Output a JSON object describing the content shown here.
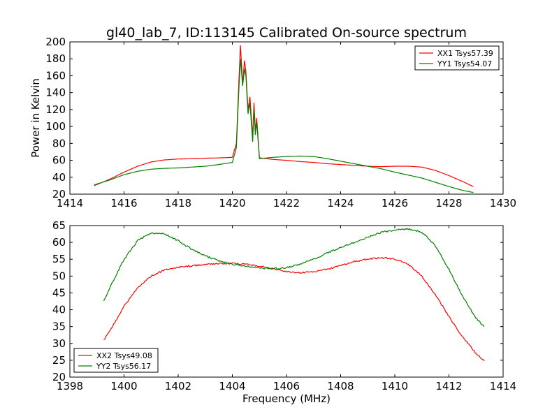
{
  "figure": {
    "title": "gl40_lab_7, ID:113145 Calibrated On-source spectrum"
  },
  "chart_data": [
    {
      "type": "line",
      "title": "gl40_lab_7, ID:113145 Calibrated On-source spectrum",
      "xlabel": "",
      "ylabel": "Power in Kelvin",
      "xlim": [
        1414,
        1430
      ],
      "ylim": [
        20,
        200
      ],
      "xticks": [
        1414,
        1416,
        1418,
        1420,
        1422,
        1424,
        1426,
        1428,
        1430
      ],
      "yticks": [
        20,
        40,
        60,
        80,
        100,
        120,
        140,
        160,
        180,
        200
      ],
      "grid": false,
      "legend_position": "top-right",
      "series": [
        {
          "name": "XX1 Tsys57.39",
          "color": "#ff0000",
          "x": [
            1414.9,
            1415.5,
            1416.0,
            1416.5,
            1417.0,
            1417.5,
            1418.0,
            1418.5,
            1419.0,
            1419.5,
            1420.0,
            1420.15,
            1420.25,
            1420.3,
            1420.38,
            1420.45,
            1420.5,
            1420.58,
            1420.65,
            1420.75,
            1420.8,
            1420.85,
            1420.9,
            1421.0,
            1421.5,
            1422.0,
            1422.5,
            1423.0,
            1423.5,
            1424.0,
            1424.5,
            1425.0,
            1425.5,
            1426.0,
            1426.5,
            1427.0,
            1427.5,
            1428.0,
            1428.5,
            1428.9
          ],
          "y": [
            30,
            38,
            46,
            53,
            58,
            60.5,
            61.5,
            62,
            62.5,
            62.8,
            63.5,
            80,
            160,
            196,
            150,
            178,
            165,
            120,
            135,
            88,
            128,
            95,
            110,
            63,
            61,
            60,
            58.5,
            57.5,
            56,
            55,
            54,
            53,
            52.5,
            53,
            53,
            52,
            48,
            42,
            35,
            29
          ]
        },
        {
          "name": "YY1 Tsys54.07",
          "color": "#008000",
          "x": [
            1414.9,
            1415.5,
            1416.0,
            1416.5,
            1417.0,
            1417.5,
            1418.0,
            1418.5,
            1419.0,
            1419.5,
            1420.0,
            1420.15,
            1420.25,
            1420.3,
            1420.38,
            1420.45,
            1420.5,
            1420.58,
            1420.65,
            1420.75,
            1420.8,
            1420.85,
            1420.9,
            1421.0,
            1421.5,
            1422.0,
            1422.5,
            1423.0,
            1423.5,
            1424.0,
            1424.5,
            1425.0,
            1425.5,
            1426.0,
            1426.5,
            1427.0,
            1427.5,
            1428.0,
            1428.5,
            1428.9
          ],
          "y": [
            31,
            37,
            43,
            47,
            49.5,
            50.5,
            51,
            52,
            53,
            55,
            57.5,
            75,
            150,
            180,
            148,
            168,
            160,
            115,
            128,
            82,
            120,
            90,
            105,
            62,
            63.5,
            64.5,
            65,
            64.5,
            62,
            59,
            56,
            53,
            50,
            46,
            42.5,
            39,
            34,
            29,
            24.5,
            22
          ]
        }
      ]
    },
    {
      "type": "line",
      "title": "",
      "xlabel": "Frequency (MHz)",
      "ylabel": "",
      "xlim": [
        1398,
        1414
      ],
      "ylim": [
        20,
        65
      ],
      "xticks": [
        1398,
        1400,
        1402,
        1404,
        1406,
        1408,
        1410,
        1412,
        1414
      ],
      "yticks": [
        20,
        25,
        30,
        35,
        40,
        45,
        50,
        55,
        60,
        65
      ],
      "grid": false,
      "legend_position": "bottom-left",
      "series": [
        {
          "name": "XX2 Tsys49.08",
          "color": "#ff0000",
          "x": [
            1399.25,
            1399.5,
            1400.0,
            1400.5,
            1401.0,
            1401.5,
            1402.0,
            1402.5,
            1403.0,
            1403.5,
            1404.0,
            1404.5,
            1405.0,
            1405.5,
            1406.0,
            1406.5,
            1407.0,
            1407.5,
            1408.0,
            1408.5,
            1409.0,
            1409.5,
            1410.0,
            1410.5,
            1411.0,
            1411.5,
            1412.0,
            1412.5,
            1413.0,
            1413.3
          ],
          "y": [
            31,
            34,
            41,
            46.5,
            50,
            51.8,
            52.6,
            53.1,
            53.4,
            53.7,
            53.8,
            53.5,
            53,
            52.2,
            51.3,
            51,
            51.3,
            52,
            53.2,
            54.3,
            55,
            55.5,
            55.1,
            53.5,
            50,
            44.5,
            38,
            32,
            27,
            24.8
          ]
        },
        {
          "name": "YY2 Tsys56.17",
          "color": "#008000",
          "x": [
            1399.25,
            1399.5,
            1400.0,
            1400.5,
            1401.0,
            1401.5,
            1402.0,
            1402.5,
            1403.0,
            1403.5,
            1404.0,
            1404.5,
            1405.0,
            1405.5,
            1406.0,
            1406.5,
            1407.0,
            1407.5,
            1408.0,
            1408.5,
            1409.0,
            1409.5,
            1410.0,
            1410.5,
            1411.0,
            1411.5,
            1412.0,
            1412.5,
            1413.0,
            1413.3
          ],
          "y": [
            42.5,
            47,
            55,
            60.5,
            62.8,
            62.5,
            60.5,
            58,
            56,
            54.5,
            53.5,
            53,
            52.4,
            52.2,
            52.5,
            53.5,
            55,
            56.8,
            58.5,
            60,
            61.5,
            63,
            63.7,
            64,
            63,
            59,
            52,
            44,
            37.5,
            35
          ]
        }
      ]
    }
  ]
}
